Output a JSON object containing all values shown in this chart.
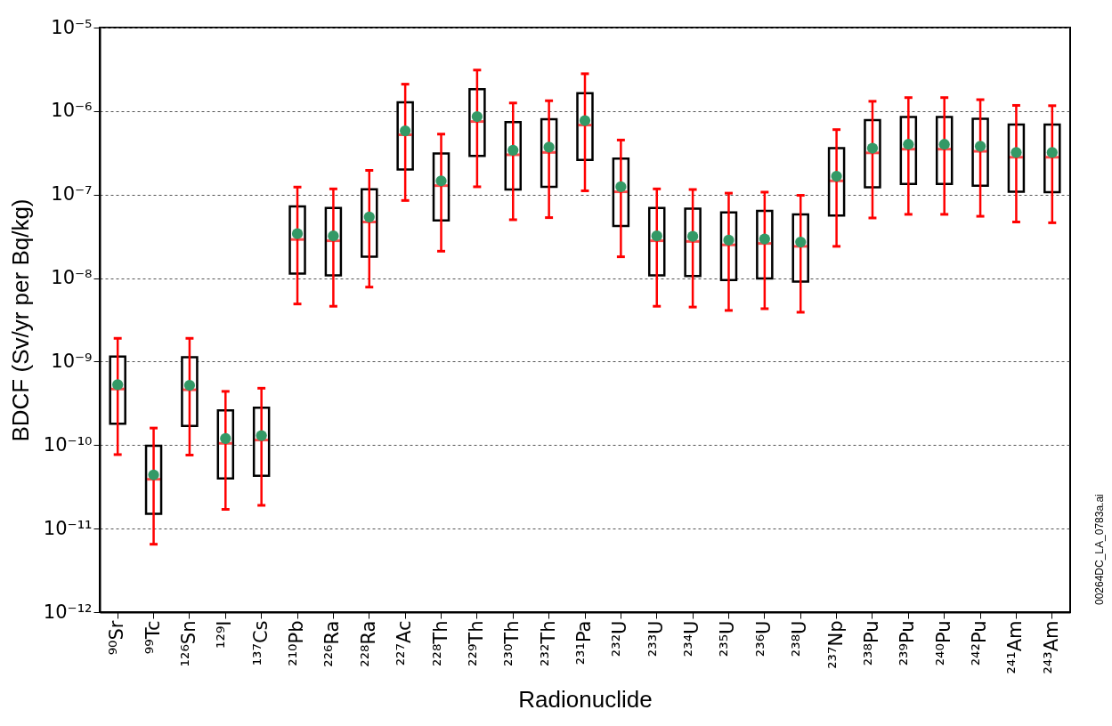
{
  "chart_data": {
    "type": "box",
    "xlabel": "Radionuclide",
    "ylabel": "BDCF (Sv/yr per Bq/kg)",
    "categories": [
      "⁹⁰Sr",
      "⁹⁹Tc",
      "¹²⁶Sn",
      "¹²⁹I",
      "¹³⁷Cs",
      "²¹⁰Pb",
      "²²⁶Ra",
      "²²⁸Ra",
      "²²⁷Ac",
      "²²⁸Th",
      "²²⁹Th",
      "²³⁰Th",
      "²³²Th",
      "²³¹Pa",
      "²³²U",
      "²³³U",
      "²³⁴U",
      "²³⁵U",
      "²³⁶U",
      "²³⁸U",
      "²³⁷Np",
      "²³⁸Pu",
      "²³⁹Pu",
      "²⁴⁰Pu",
      "²⁴²Pu",
      "²⁴¹Am",
      "²⁴³Am"
    ],
    "log": "y",
    "ylim": [
      1e-12,
      1e-05
    ],
    "yticks": [
      {
        "value": 1e-12,
        "label": "10⁻¹²"
      },
      {
        "value": 1e-11,
        "label": "10⁻¹¹"
      },
      {
        "value": 1e-10,
        "label": "10⁻¹⁰"
      },
      {
        "value": 1e-09,
        "label": "10⁻⁹"
      },
      {
        "value": 1e-08,
        "label": "10⁻⁸"
      },
      {
        "value": 1e-07,
        "label": "10⁻⁷"
      },
      {
        "value": 1e-06,
        "label": "10⁻⁶"
      },
      {
        "value": 1e-05,
        "label": "10⁻⁵"
      }
    ],
    "grid": "y",
    "marker": "circle",
    "series": [
      {
        "color": "#000000",
        "boxes": [
          {
            "low": 7.7e-11,
            "q1": 1.8e-10,
            "median": 4.7e-10,
            "q3": 1.15e-09,
            "high": 1.9e-09,
            "mean": 5.3e-10
          },
          {
            "low": 6.5e-12,
            "q1": 1.5e-11,
            "median": 3.9e-11,
            "q3": 9.8e-11,
            "high": 1.6e-10,
            "mean": 4.4e-11
          },
          {
            "low": 7.6e-11,
            "q1": 1.7e-10,
            "median": 4.6e-10,
            "q3": 1.13e-09,
            "high": 1.9e-09,
            "mean": 5.2e-10
          },
          {
            "low": 1.7e-11,
            "q1": 4e-11,
            "median": 1.05e-10,
            "q3": 2.6e-10,
            "high": 4.4e-10,
            "mean": 1.2e-10
          },
          {
            "low": 1.9e-11,
            "q1": 4.3e-11,
            "median": 1.15e-10,
            "q3": 2.8e-10,
            "high": 4.8e-10,
            "mean": 1.3e-10
          },
          {
            "low": 4.9e-09,
            "q1": 1.13e-08,
            "median": 2.9e-08,
            "q3": 7.2e-08,
            "high": 1.23e-07,
            "mean": 3.4e-08
          },
          {
            "low": 4.6e-09,
            "q1": 1.08e-08,
            "median": 2.8e-08,
            "q3": 6.9e-08,
            "high": 1.17e-07,
            "mean": 3.2e-08
          },
          {
            "low": 7.8e-09,
            "q1": 1.8e-08,
            "median": 4.7e-08,
            "q3": 1.16e-07,
            "high": 1.95e-07,
            "mean": 5.4e-08
          },
          {
            "low": 8.5e-08,
            "q1": 2e-07,
            "median": 5.2e-07,
            "q3": 1.27e-06,
            "high": 2.1e-06,
            "mean": 5.8e-07
          },
          {
            "low": 2.1e-08,
            "q1": 4.9e-08,
            "median": 1.28e-07,
            "q3": 3.1e-07,
            "high": 5.3e-07,
            "mean": 1.46e-07
          },
          {
            "low": 1.24e-07,
            "q1": 2.9e-07,
            "median": 7.5e-07,
            "q3": 1.83e-06,
            "high": 3.1e-06,
            "mean": 8.6e-07
          },
          {
            "low": 5e-08,
            "q1": 1.15e-07,
            "median": 3e-07,
            "q3": 7.4e-07,
            "high": 1.25e-06,
            "mean": 3.4e-07
          },
          {
            "low": 5.3e-08,
            "q1": 1.24e-07,
            "median": 3.2e-07,
            "q3": 8e-07,
            "high": 1.33e-06,
            "mean": 3.7e-07
          },
          {
            "low": 1.11e-07,
            "q1": 2.6e-07,
            "median": 6.8e-07,
            "q3": 1.64e-06,
            "high": 2.8e-06,
            "mean": 7.7e-07
          },
          {
            "low": 1.8e-08,
            "q1": 4.2e-08,
            "median": 1.08e-07,
            "q3": 2.7e-07,
            "high": 4.5e-07,
            "mean": 1.24e-07
          },
          {
            "low": 4.6e-09,
            "q1": 1.08e-08,
            "median": 2.8e-08,
            "q3": 6.9e-08,
            "high": 1.17e-07,
            "mean": 3.2e-08
          },
          {
            "low": 4.5e-09,
            "q1": 1.06e-08,
            "median": 2.75e-08,
            "q3": 6.8e-08,
            "high": 1.15e-07,
            "mean": 3.16e-08
          },
          {
            "low": 4.1e-09,
            "q1": 9.5e-09,
            "median": 2.5e-08,
            "q3": 6.1e-08,
            "high": 1.04e-07,
            "mean": 2.85e-08
          },
          {
            "low": 4.3e-09,
            "q1": 9.9e-09,
            "median": 2.6e-08,
            "q3": 6.4e-08,
            "high": 1.07e-07,
            "mean": 2.94e-08
          },
          {
            "low": 3.9e-09,
            "q1": 9.1e-09,
            "median": 2.4e-08,
            "q3": 5.8e-08,
            "high": 9.8e-08,
            "mean": 2.7e-08
          },
          {
            "low": 2.4e-08,
            "q1": 5.6e-08,
            "median": 1.46e-07,
            "q3": 3.6e-07,
            "high": 6e-07,
            "mean": 1.66e-07
          },
          {
            "low": 5.25e-08,
            "q1": 1.22e-07,
            "median": 3.16e-07,
            "q3": 7.8e-07,
            "high": 1.31e-06,
            "mean": 3.6e-07
          },
          {
            "low": 5.8e-08,
            "q1": 1.34e-07,
            "median": 3.5e-07,
            "q3": 8.5e-07,
            "high": 1.45e-06,
            "mean": 4e-07
          },
          {
            "low": 5.8e-08,
            "q1": 1.34e-07,
            "median": 3.5e-07,
            "q3": 8.5e-07,
            "high": 1.45e-06,
            "mean": 4e-07
          },
          {
            "low": 5.5e-08,
            "q1": 1.28e-07,
            "median": 3.3e-07,
            "q3": 8.1e-07,
            "high": 1.37e-06,
            "mean": 3.8e-07
          },
          {
            "low": 4.7e-08,
            "q1": 1.08e-07,
            "median": 2.8e-07,
            "q3": 6.9e-07,
            "high": 1.17e-06,
            "mean": 3.2e-07
          },
          {
            "low": 4.6e-08,
            "q1": 1.07e-07,
            "median": 2.8e-07,
            "q3": 6.9e-07,
            "high": 1.16e-06,
            "mean": 3.2e-07
          }
        ]
      }
    ],
    "annotations": [
      "00264DC_LA_0783a.ai"
    ]
  }
}
